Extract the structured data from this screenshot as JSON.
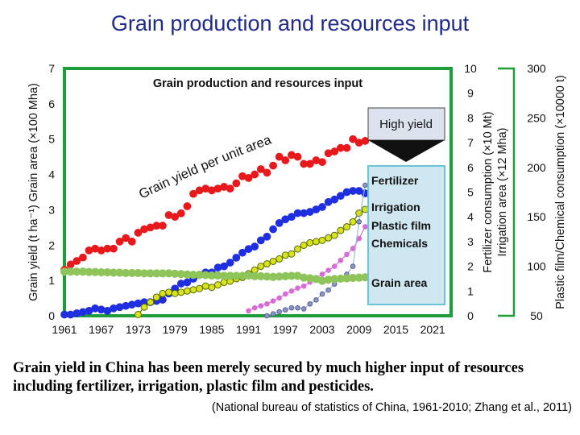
{
  "slide": {
    "title": "Grain production and resources input",
    "caption": "Grain yield in China has been merely secured by much higher input of resources including fertilizer, irrigation, plastic film and pesticides.",
    "source": "(National bureau of statistics of China, 1961-2010; Zhang et al., 2011)"
  },
  "chart_data": {
    "type": "scatter",
    "title": "Grain production and resources input",
    "curve_label": "Grain yield per unit area",
    "callout": "High yield",
    "xlabel": "",
    "x_ticks": [
      "1961",
      "1967",
      "1973",
      "1979",
      "1985",
      "1991",
      "1997",
      "2003",
      "2009",
      "2015",
      "2021"
    ],
    "xlim": [
      1961,
      2024
    ],
    "y_left": {
      "label": "Grain yield (t ha⁻¹)  Grain area (×100 Mha)",
      "ticks": [
        "0",
        "1",
        "2",
        "3",
        "4",
        "5",
        "6",
        "7"
      ],
      "ylim": [
        0,
        7
      ]
    },
    "y_right1": {
      "label1": "Fertilizer consumption (×10 Mt)",
      "label2": "Irrigation area (×12 Mha)",
      "ticks": [
        "0",
        "1",
        "2",
        "3",
        "4",
        "5",
        "6",
        "7",
        "8",
        "9",
        "10"
      ],
      "ylim": [
        0,
        10
      ]
    },
    "y_right2": {
      "label": "Plastic film/Chemical consumption (×10000 t)",
      "ticks": [
        "50",
        "100",
        "150",
        "200",
        "250",
        "300"
      ],
      "ylim": [
        50,
        300
      ]
    },
    "legend": [
      "Fertilizer",
      "Irrigation",
      "Plastic film",
      "Chemicals",
      "Grain area"
    ],
    "colors": {
      "yield": "#e8191c",
      "fertilizer": "#1f2fe0",
      "irrigation": "#d9e21a",
      "plastic": "#d86bd8",
      "chemicals": "#8c94c8",
      "area": "#8fc45a",
      "frame": "#1e9d3a",
      "legend_border": "#6cc4d8",
      "legend_fill": "#cfe7f0",
      "title": "#1f2a8c"
    },
    "series": [
      {
        "name": "Grain yield",
        "axis": "left",
        "x": [
          1961,
          1962,
          1963,
          1964,
          1965,
          1966,
          1967,
          1968,
          1969,
          1970,
          1971,
          1972,
          1973,
          1974,
          1975,
          1976,
          1977,
          1978,
          1979,
          1980,
          1981,
          1982,
          1983,
          1984,
          1985,
          1986,
          1987,
          1988,
          1989,
          1990,
          1991,
          1992,
          1993,
          1994,
          1995,
          1996,
          1997,
          1998,
          1999,
          2000,
          2001,
          2002,
          2003,
          2004,
          2005,
          2006,
          2007,
          2008,
          2009,
          2010
        ],
        "values": [
          1.3,
          1.45,
          1.55,
          1.65,
          1.85,
          1.9,
          1.85,
          1.9,
          1.9,
          2.1,
          2.2,
          2.1,
          2.35,
          2.45,
          2.5,
          2.55,
          2.55,
          2.85,
          2.8,
          2.9,
          3.1,
          3.45,
          3.55,
          3.6,
          3.55,
          3.6,
          3.65,
          3.6,
          3.75,
          3.95,
          3.9,
          4.0,
          4.15,
          4.05,
          4.25,
          4.5,
          4.4,
          4.55,
          4.5,
          4.3,
          4.3,
          4.4,
          4.35,
          4.6,
          4.65,
          4.75,
          4.75,
          5.0,
          4.9,
          4.95
        ]
      },
      {
        "name": "Fertilizer",
        "axis": "right1",
        "x": [
          1961,
          1962,
          1963,
          1964,
          1965,
          1966,
          1967,
          1968,
          1969,
          1970,
          1971,
          1972,
          1973,
          1974,
          1975,
          1976,
          1977,
          1978,
          1979,
          1980,
          1981,
          1982,
          1983,
          1984,
          1985,
          1986,
          1987,
          1988,
          1989,
          1990,
          1991,
          1992,
          1993,
          1994,
          1995,
          1996,
          1997,
          1998,
          1999,
          2000,
          2001,
          2002,
          2003,
          2004,
          2005,
          2006,
          2007,
          2008,
          2009,
          2010
        ],
        "values": [
          0.05,
          0.05,
          0.1,
          0.15,
          0.2,
          0.3,
          0.25,
          0.2,
          0.3,
          0.35,
          0.4,
          0.45,
          0.5,
          0.55,
          0.55,
          0.6,
          0.65,
          0.9,
          1.1,
          1.3,
          1.35,
          1.5,
          1.65,
          1.75,
          1.75,
          1.95,
          2.0,
          2.15,
          2.35,
          2.55,
          2.7,
          2.8,
          3.05,
          3.2,
          3.5,
          3.75,
          3.9,
          4.0,
          4.15,
          4.15,
          4.2,
          4.3,
          4.4,
          4.6,
          4.7,
          4.85,
          5.0,
          5.05,
          5.05,
          4.95
        ]
      },
      {
        "name": "Irrigation",
        "axis": "right1",
        "x": [
          1973,
          1974,
          1975,
          1976,
          1977,
          1978,
          1979,
          1980,
          1981,
          1982,
          1983,
          1984,
          1985,
          1986,
          1987,
          1988,
          1989,
          1990,
          1991,
          1992,
          1993,
          1994,
          1995,
          1996,
          1997,
          1998,
          1999,
          2000,
          2001,
          2002,
          2003,
          2004,
          2005,
          2006,
          2007,
          2008,
          2009,
          2010
        ],
        "values": [
          0.05,
          0.35,
          0.55,
          0.75,
          0.9,
          0.95,
          0.9,
          0.95,
          1.0,
          1.05,
          1.1,
          1.2,
          1.15,
          1.25,
          1.35,
          1.4,
          1.5,
          1.55,
          1.7,
          1.85,
          2.0,
          2.1,
          2.2,
          2.3,
          2.45,
          2.5,
          2.7,
          2.85,
          2.95,
          3.0,
          3.05,
          3.15,
          3.25,
          3.45,
          3.6,
          3.8,
          4.15,
          4.3
        ]
      },
      {
        "name": "Plastic film",
        "axis": "right2",
        "x": [
          1991,
          1992,
          1993,
          1994,
          1995,
          1996,
          1997,
          1998,
          1999,
          2000,
          2001,
          2002,
          2003,
          2004,
          2005,
          2006,
          2007,
          2008,
          2009,
          2010
        ],
        "values": [
          55,
          58,
          60,
          62,
          65,
          68,
          72,
          75,
          78,
          80,
          84,
          88,
          92,
          96,
          100,
          106,
          112,
          118,
          128,
          140
        ]
      },
      {
        "name": "Chemicals",
        "axis": "right2",
        "x": [
          1994,
          1995,
          1996,
          1997,
          1998,
          1999,
          2000,
          2001,
          2002,
          2003,
          2004,
          2005,
          2006,
          2007,
          2008,
          2009,
          2010
        ],
        "values": [
          50,
          52,
          54,
          56,
          58,
          58,
          57,
          62,
          66,
          72,
          76,
          82,
          88,
          92,
          100,
          145,
          182
        ]
      },
      {
        "name": "Grain area",
        "axis": "left",
        "x": [
          1961,
          1962,
          1963,
          1964,
          1965,
          1966,
          1967,
          1968,
          1969,
          1970,
          1971,
          1972,
          1973,
          1974,
          1975,
          1976,
          1977,
          1978,
          1979,
          1980,
          1981,
          1982,
          1983,
          1984,
          1985,
          1986,
          1987,
          1988,
          1989,
          1990,
          1991,
          1992,
          1993,
          1994,
          1995,
          1996,
          1997,
          1998,
          1999,
          2000,
          2001,
          2002,
          2003,
          2004,
          2005,
          2006,
          2007,
          2008,
          2009,
          2010
        ],
        "values": [
          1.25,
          1.25,
          1.25,
          1.25,
          1.24,
          1.24,
          1.23,
          1.23,
          1.22,
          1.22,
          1.21,
          1.21,
          1.21,
          1.2,
          1.2,
          1.2,
          1.2,
          1.2,
          1.19,
          1.18,
          1.17,
          1.16,
          1.16,
          1.15,
          1.14,
          1.14,
          1.13,
          1.13,
          1.13,
          1.13,
          1.14,
          1.12,
          1.12,
          1.11,
          1.1,
          1.11,
          1.12,
          1.13,
          1.13,
          1.08,
          1.06,
          1.04,
          0.99,
          1.02,
          1.04,
          1.05,
          1.06,
          1.07,
          1.08,
          1.09
        ]
      }
    ]
  }
}
